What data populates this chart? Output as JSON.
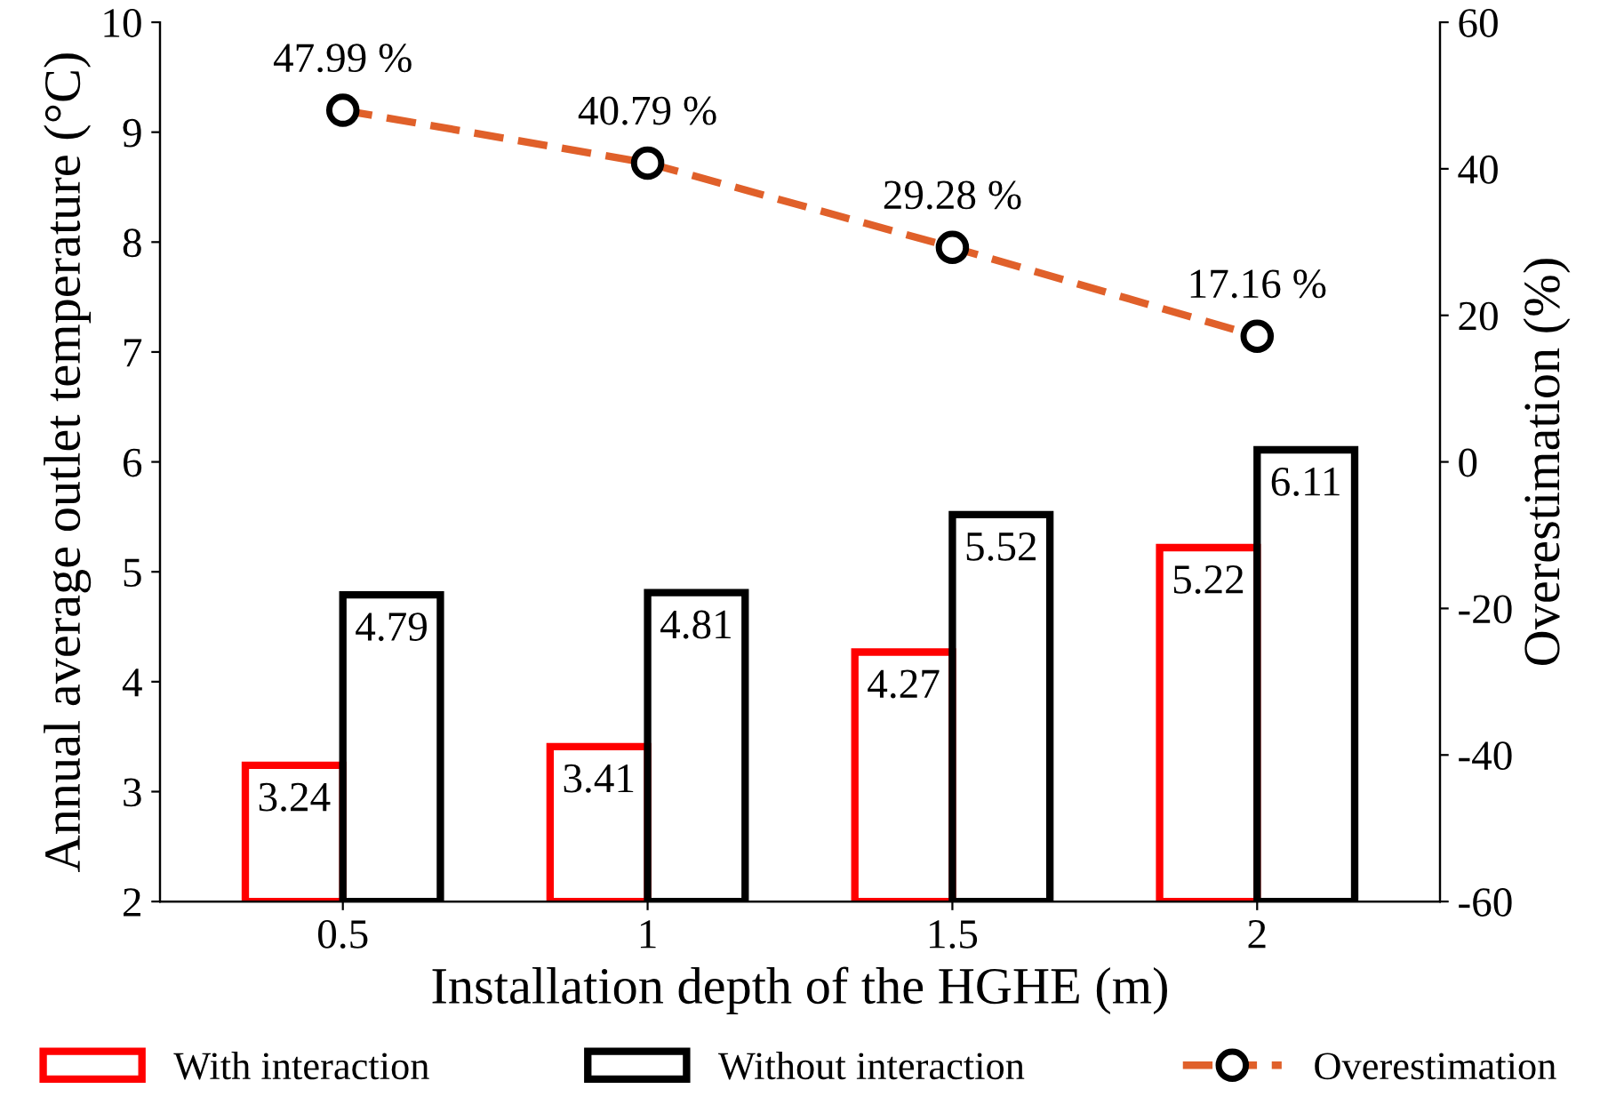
{
  "chart_data": {
    "type": "bar",
    "xlabel": "Installation depth of the HGHE (m)",
    "ylabel": "Annual average outlet temperature (°C)",
    "y2label": "Overestimation (%)",
    "categories": [
      "0.5",
      "1",
      "1.5",
      "2"
    ],
    "series": [
      {
        "name": "With interaction",
        "color": "#ff0000",
        "values": [
          3.24,
          3.41,
          4.27,
          5.22
        ]
      },
      {
        "name": "Without interaction",
        "color": "#000000",
        "values": [
          4.79,
          4.81,
          5.52,
          6.11
        ]
      },
      {
        "name": "Overestimation",
        "type": "line",
        "axis": "y2",
        "color": "#e0602a",
        "marker": "circle",
        "line_style": "dashed",
        "values": [
          47.99,
          40.79,
          29.28,
          17.16
        ],
        "value_labels": [
          "47.99 %",
          "40.79 %",
          "29.28 %",
          "17.16 %"
        ]
      }
    ],
    "data_labels": true,
    "ylim": [
      2,
      10
    ],
    "yticks": [
      2,
      3,
      4,
      5,
      6,
      7,
      8,
      9,
      10
    ],
    "y2lim": [
      -60,
      60
    ],
    "y2ticks": [
      -60,
      -40,
      -20,
      0,
      20,
      40,
      60
    ],
    "grid": false,
    "legend": "bottom"
  }
}
